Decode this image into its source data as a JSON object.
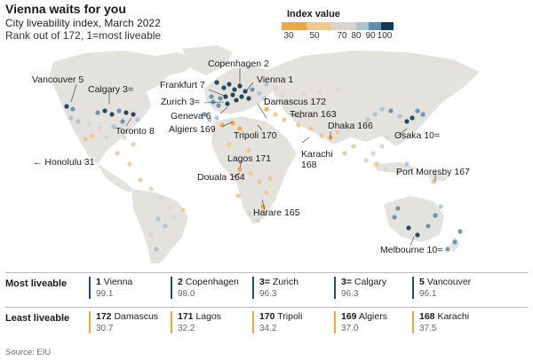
{
  "header": {
    "title": "Vienna waits for you",
    "subtitle": "City liveability index, March 2022",
    "note": "Rank out of 172, 1=most liveable"
  },
  "legend": {
    "title": "Index value",
    "ticks": [
      "30",
      "50",
      "70",
      "80",
      "90",
      "100"
    ],
    "colors": [
      "#f2a73b",
      "#f0c98a",
      "#d9d5cc",
      "#a9c4d6",
      "#5c8fb0",
      "#0f3b57"
    ]
  },
  "map": {
    "land_color": "#e4e2dc",
    "labels": {
      "copenhagen": "Copenhagen 2",
      "vancouver": "Vancouver 5",
      "calgary": "Calgary 3=",
      "frankfurt": "Frankfurt 7",
      "vienna": "Vienna 1",
      "zurich": "Zurich 3=",
      "damascus": "Damascus 172",
      "geneva": "Geneva 6",
      "tehran": "Tehran 163",
      "algiers": "Algiers 169",
      "tripoli": "Tripoli 170",
      "dhaka": "Dhaka 166",
      "toronto": "Toronto 8",
      "osaka": "Osaka 10=",
      "karachi": "Karachi\n168",
      "honolulu": "← Honolulu 31",
      "lagos": "Lagos 171",
      "douala": "Douala 164",
      "port_moresby": "Port Moresby 167",
      "harare": "Harare 165",
      "melbourne": "Melbourne 10="
    }
  },
  "table": {
    "most_label": "Most liveable",
    "least_label": "Least liveable",
    "most": [
      {
        "rank": "1",
        "city": "Vienna",
        "score": "99.1"
      },
      {
        "rank": "2",
        "city": "Copenhagen",
        "score": "98.0"
      },
      {
        "rank": "3=",
        "city": "Zurich",
        "score": "96.3"
      },
      {
        "rank": "3=",
        "city": "Calgary",
        "score": "96.3"
      },
      {
        "rank": "5",
        "city": "Vancouver",
        "score": "96.1"
      }
    ],
    "least": [
      {
        "rank": "172",
        "city": "Damascus",
        "score": "30.7"
      },
      {
        "rank": "171",
        "city": "Lagos",
        "score": "32.2"
      },
      {
        "rank": "170",
        "city": "Tripoli",
        "score": "34.2"
      },
      {
        "rank": "169",
        "city": "Algiers",
        "score": "37.0"
      },
      {
        "rank": "168",
        "city": "Karachi",
        "score": "37.5"
      }
    ]
  },
  "source": "Source: EIU"
}
